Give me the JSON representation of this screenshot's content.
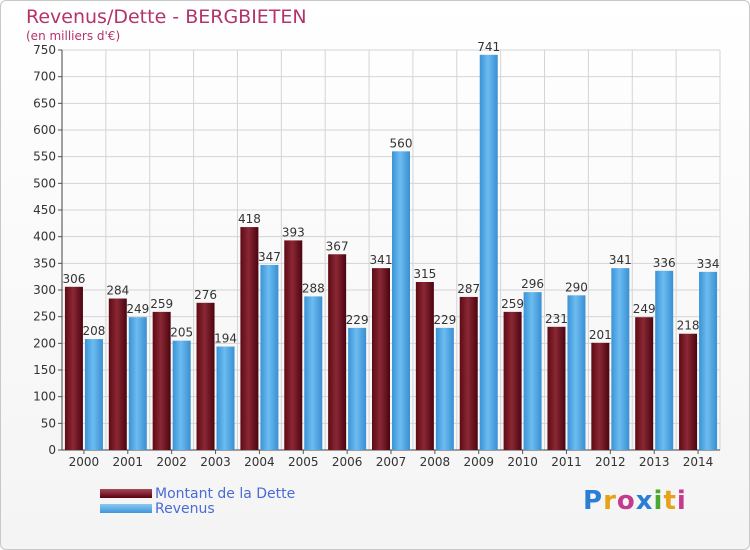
{
  "chart_data": {
    "type": "bar",
    "title": "Revenus/Dette - BERGBIETEN",
    "subtitle": "(en milliers d'€)",
    "categories": [
      "2000",
      "2001",
      "2002",
      "2003",
      "2004",
      "2005",
      "2006",
      "2007",
      "2008",
      "2009",
      "2010",
      "2011",
      "2012",
      "2013",
      "2014"
    ],
    "series": [
      {
        "name": "Montant de la Dette",
        "color": "#7a1a24",
        "values": [
          306,
          284,
          259,
          276,
          418,
          393,
          367,
          341,
          315,
          287,
          259,
          231,
          201,
          249,
          218
        ]
      },
      {
        "name": "Revenus",
        "color": "#4aa3e3",
        "values": [
          208,
          249,
          205,
          194,
          347,
          288,
          229,
          560,
          229,
          741,
          296,
          290,
          341,
          336,
          334
        ]
      }
    ],
    "ylim": [
      0,
      750
    ],
    "yticks": [
      0,
      50,
      100,
      150,
      200,
      250,
      300,
      350,
      400,
      450,
      500,
      550,
      600,
      650,
      700,
      750
    ],
    "grid": true,
    "legend_position": "bottom-left"
  },
  "logo": {
    "letters": [
      "P",
      "r",
      "o",
      "x",
      "i",
      "t",
      "i"
    ],
    "colors": [
      "#2a7fd4",
      "#e8a21a",
      "#c43a8c",
      "#2a7fd4",
      "#4aa830",
      "#e8a21a",
      "#c43a8c"
    ]
  }
}
